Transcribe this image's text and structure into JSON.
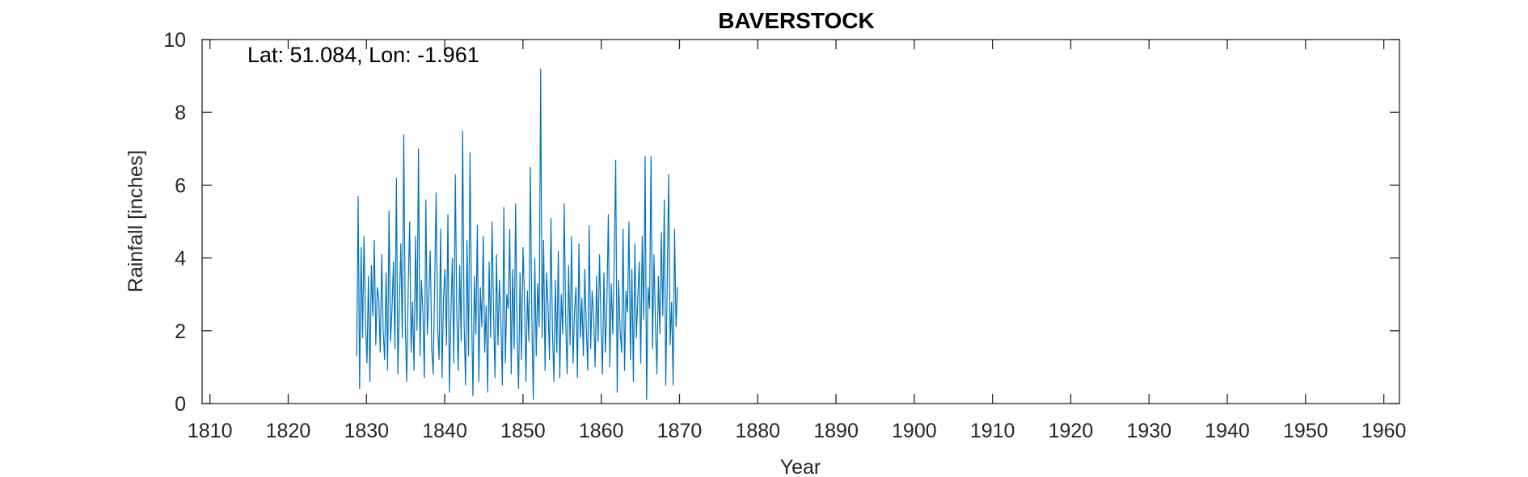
{
  "chart_data": {
    "type": "line",
    "title": "BAVERSTOCK",
    "xlabel": "Year",
    "ylabel": "Rainfall [inches]",
    "annotation": "Lat: 51.084, Lon: -1.961",
    "xlim": [
      1809,
      1962
    ],
    "ylim": [
      0,
      10
    ],
    "xticks": [
      1810,
      1820,
      1830,
      1840,
      1850,
      1860,
      1870,
      1880,
      1890,
      1900,
      1910,
      1920,
      1930,
      1940,
      1950,
      1960
    ],
    "yticks": [
      0,
      2,
      4,
      6,
      8,
      10
    ],
    "grid": false,
    "line_color": "#0072BD",
    "series": [
      {
        "start_year": 1828.75,
        "end_year": 1869.75,
        "monthly_values": [
          1.3,
          5.7,
          0.4,
          4.3,
          1.8,
          4.6,
          2.2,
          1.1,
          3.5,
          0.6,
          3.8,
          2.4,
          4.5,
          1.6,
          3.2,
          2.9,
          1.4,
          4.1,
          2.0,
          1.2,
          3.6,
          0.9,
          5.3,
          1.7,
          2.6,
          3.9,
          1.5,
          6.2,
          0.8,
          2.7,
          4.4,
          1.8,
          7.4,
          2.3,
          0.6,
          3.1,
          5.0,
          1.4,
          2.8,
          0.9,
          4.6,
          2.0,
          7.0,
          1.3,
          3.4,
          2.5,
          0.7,
          5.6,
          1.9,
          3.0,
          4.2,
          1.5,
          0.8,
          3.3,
          5.8,
          2.1,
          1.2,
          4.8,
          0.7,
          2.9,
          3.7,
          1.6,
          5.2,
          0.3,
          2.4,
          4.0,
          1.1,
          6.3,
          2.6,
          0.9,
          3.8,
          1.7,
          7.5,
          2.2,
          0.5,
          4.5,
          1.3,
          6.9,
          2.8,
          0.2,
          3.5,
          1.9,
          4.9,
          0.6,
          3.2,
          2.1,
          4.6,
          1.4,
          2.7,
          0.3,
          3.9,
          1.8,
          5.0,
          2.5,
          0.7,
          4.1,
          1.6,
          3.4,
          2.2,
          0.5,
          5.4,
          1.1,
          3.0,
          2.6,
          4.8,
          0.8,
          3.7,
          1.5,
          5.5,
          2.0,
          0.4,
          3.6,
          1.2,
          4.3,
          2.9,
          0.6,
          3.1,
          1.7,
          6.5,
          2.4,
          0.1,
          4.0,
          1.3,
          3.3,
          2.1,
          9.2,
          1.8,
          4.5,
          0.9,
          3.6,
          2.7,
          1.2,
          5.1,
          2.0,
          0.6,
          3.4,
          1.4,
          4.2,
          0.7,
          3.0,
          1.9,
          5.5,
          2.3,
          0.8,
          3.8,
          1.6,
          4.6,
          1.1,
          2.5,
          3.2,
          0.7,
          4.4,
          1.8,
          2.9,
          1.3,
          3.7,
          2.1,
          0.9,
          4.9,
          1.5,
          3.1,
          2.4,
          1.0,
          3.5,
          1.7,
          4.1,
          2.2,
          0.8,
          3.6,
          1.4,
          2.8,
          5.2,
          1.0,
          3.3,
          1.9,
          4.0,
          6.7,
          0.3,
          3.4,
          2.0,
          1.4,
          4.8,
          0.9,
          3.1,
          2.5,
          5.0,
          1.2,
          3.7,
          0.6,
          4.4,
          1.8,
          2.9,
          3.9,
          1.1,
          4.6,
          2.3,
          6.8,
          0.1,
          3.2,
          2.6,
          6.8,
          1.5,
          4.1,
          2.2,
          0.8,
          3.5,
          1.9,
          4.7,
          2.4,
          5.6,
          0.5,
          3.3,
          6.3,
          1.6,
          2.8,
          0.5,
          4.8,
          2.1,
          3.2
        ]
      }
    ]
  }
}
